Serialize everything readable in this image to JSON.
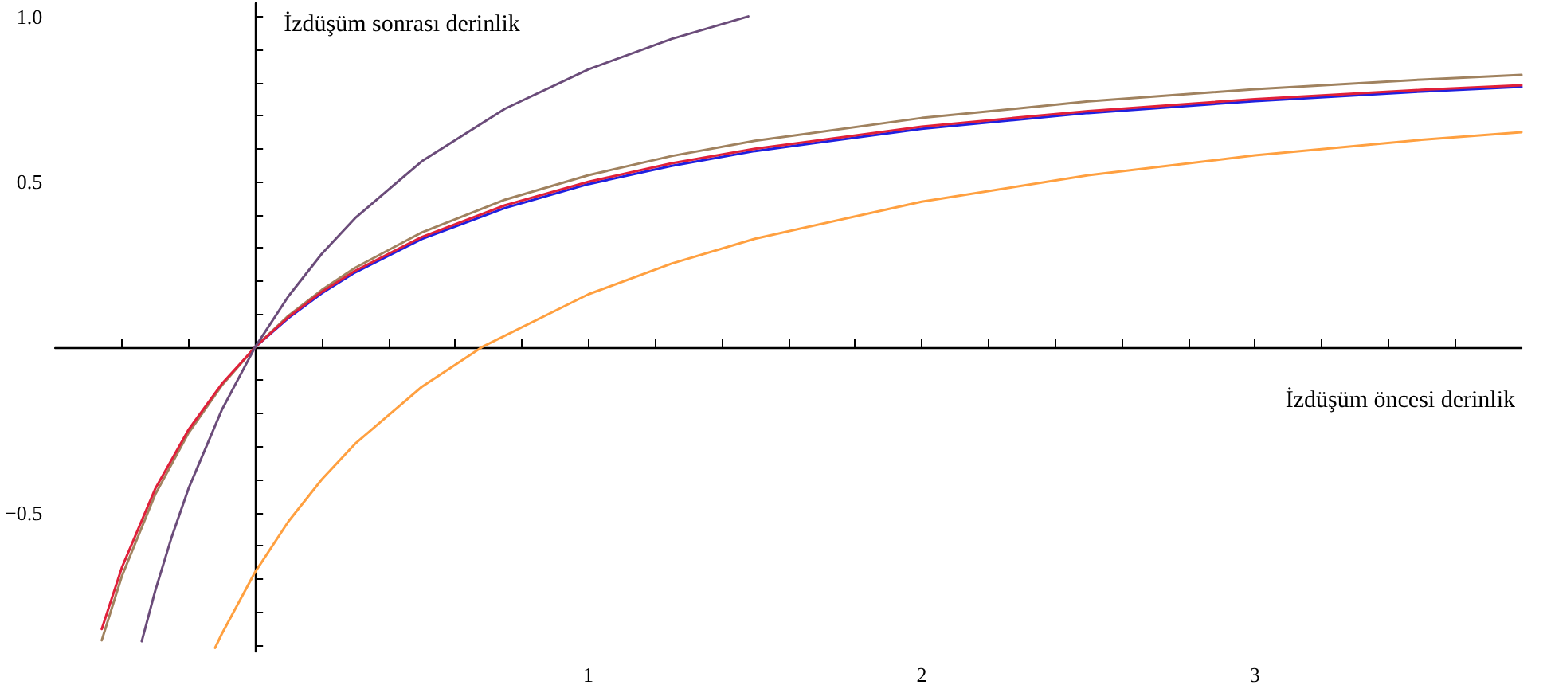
{
  "chart_data": {
    "type": "line",
    "xlabel": "İzdüşüm öncesi derinlik",
    "ylabel": "İzdüşüm sonrası derinlik",
    "xlim": [
      -0.6,
      3.8
    ],
    "ylim": [
      -0.92,
      1.04
    ],
    "xticks": [
      {
        "value": -0.4,
        "label": null
      },
      {
        "value": -0.2,
        "label": null
      },
      {
        "value": 0.2,
        "label": null
      },
      {
        "value": 0.4,
        "label": null
      },
      {
        "value": 0.6,
        "label": null
      },
      {
        "value": 0.8,
        "label": null
      },
      1,
      {
        "value": 1.2,
        "label": null
      },
      {
        "value": 1.4,
        "label": null
      },
      {
        "value": 1.6,
        "label": null
      },
      {
        "value": 1.8,
        "label": null
      },
      2,
      {
        "value": 2.2,
        "label": null
      },
      {
        "value": 2.4,
        "label": null
      },
      {
        "value": 2.6,
        "label": null
      },
      {
        "value": 2.8,
        "label": null
      },
      3,
      {
        "value": 3.2,
        "label": null
      },
      {
        "value": 3.4,
        "label": null
      },
      {
        "value": 3.6,
        "label": null
      }
    ],
    "yticks": [
      {
        "value": -0.9,
        "label": null
      },
      {
        "value": -0.8,
        "label": null
      },
      {
        "value": -0.7,
        "label": null
      },
      {
        "value": -0.6,
        "label": null
      },
      {
        "value": -0.5,
        "label": "−0.5"
      },
      {
        "value": -0.4,
        "label": null
      },
      {
        "value": -0.3,
        "label": null
      },
      {
        "value": -0.2,
        "label": null
      },
      {
        "value": -0.1,
        "label": null
      },
      {
        "value": 0.1,
        "label": null
      },
      {
        "value": 0.2,
        "label": null
      },
      {
        "value": 0.3,
        "label": null
      },
      {
        "value": 0.4,
        "label": null
      },
      0.5,
      {
        "value": 0.6,
        "label": null
      },
      {
        "value": 0.7,
        "label": null
      },
      {
        "value": 0.8,
        "label": null
      },
      {
        "value": 0.9,
        "label": null
      },
      {
        "value": 1,
        "label": "1.0"
      }
    ],
    "marker": "none",
    "series": [
      {
        "color": "#2020e0",
        "x": [
          0,
          0.1,
          0.2,
          0.3,
          0.5,
          0.75,
          1,
          1.25,
          1.5,
          2,
          2.5,
          3,
          3.5,
          3.8
        ],
        "values": [
          0,
          0.088,
          0.163,
          0.226,
          0.327,
          0.421,
          0.493,
          0.548,
          0.593,
          0.66,
          0.708,
          0.744,
          0.773,
          0.787
        ]
      },
      {
        "color": "#a0825f",
        "x": [
          -0.46,
          -0.4,
          -0.3,
          -0.2,
          -0.1,
          0,
          0.1,
          0.2,
          0.3,
          0.5,
          0.75,
          1,
          1.25,
          1.5,
          2,
          2.5,
          3,
          3.5,
          3.8
        ],
        "values": [
          -0.886,
          -0.693,
          -0.446,
          -0.26,
          -0.116,
          0,
          0.095,
          0.173,
          0.24,
          0.347,
          0.446,
          0.52,
          0.578,
          0.624,
          0.693,
          0.743,
          0.78,
          0.809,
          0.823
        ]
      },
      {
        "color": "#e0203a",
        "x": [
          -0.46,
          -0.4,
          -0.3,
          -0.2,
          -0.1,
          0,
          0.1,
          0.2,
          0.3,
          0.5,
          0.75,
          1,
          1.25,
          1.5,
          2,
          2.5,
          3,
          3.5,
          3.8
        ],
        "values": [
          -0.852,
          -0.667,
          -0.429,
          -0.25,
          -0.111,
          0,
          0.091,
          0.167,
          0.231,
          0.333,
          0.429,
          0.5,
          0.556,
          0.6,
          0.667,
          0.714,
          0.75,
          0.778,
          0.792
        ]
      },
      {
        "color": "#6b4c7a",
        "x": [
          -0.34,
          -0.3,
          -0.25,
          -0.2,
          -0.1,
          0,
          0.1,
          0.2,
          0.3,
          0.5,
          0.75,
          1,
          1.25,
          1.48
        ],
        "values": [
          -0.889,
          -0.738,
          -0.573,
          -0.428,
          -0.19,
          0,
          0.154,
          0.282,
          0.39,
          0.562,
          0.721,
          0.84,
          0.932,
          1.0
        ]
      },
      {
        "color": "#ffa040",
        "x": [
          -0.12,
          -0.1,
          0,
          0.1,
          0.2,
          0.3,
          0.5,
          0.68,
          1,
          1.25,
          1.5,
          2,
          2.5,
          3,
          3.5,
          3.8
        ],
        "values": [
          -0.909,
          -0.867,
          -0.68,
          -0.527,
          -0.4,
          -0.292,
          -0.12,
          0,
          0.16,
          0.253,
          0.328,
          0.44,
          0.52,
          0.58,
          0.627,
          0.65
        ]
      }
    ]
  }
}
